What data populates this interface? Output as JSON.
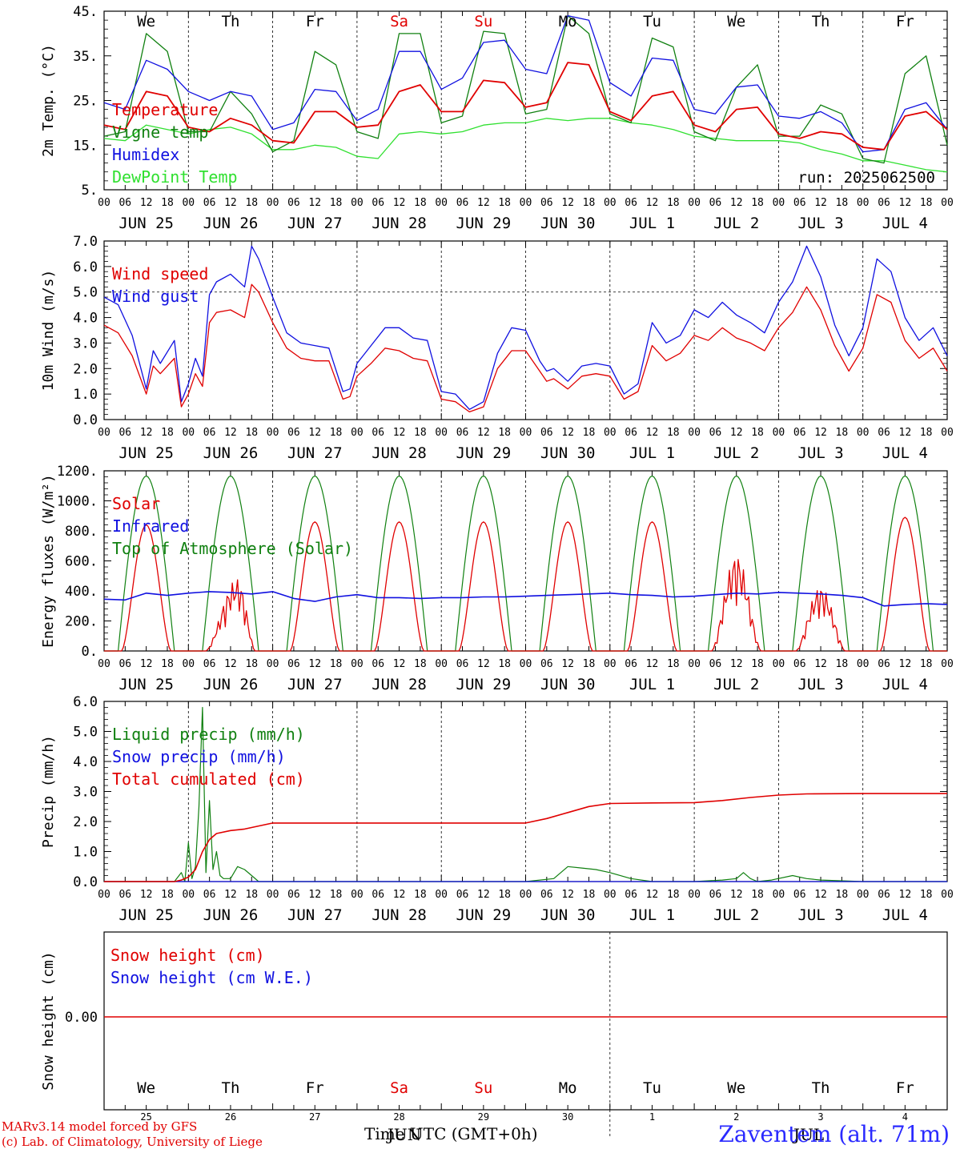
{
  "colors": {
    "red": "#e00000",
    "green": "#108010",
    "blue": "#1010e0",
    "lightgreen": "#30e030",
    "black": "#000000",
    "dayred": "#e00000"
  },
  "time_axis": {
    "hour_labels": [
      "00",
      "06",
      "12",
      "18"
    ],
    "date_labels": [
      "JUN 25",
      "JUN 26",
      "JUN 27",
      "JUN 28",
      "JUN 29",
      "JUN 30",
      "JUL  1",
      "JUL  2",
      "JUL  3",
      "JUL  4"
    ],
    "weekdays": [
      "We",
      "Th",
      "Fr",
      "Sa",
      "Su",
      "Mo",
      "Tu",
      "We",
      "Th",
      "Fr"
    ],
    "weekend_flags": [
      false,
      false,
      false,
      true,
      true,
      false,
      false,
      false,
      false,
      false
    ],
    "day_numbers": [
      "25",
      "26",
      "27",
      "28",
      "29",
      "30",
      "1",
      "2",
      "3",
      "4"
    ],
    "month_labels": [
      "JUN",
      "JUL"
    ]
  },
  "footer": {
    "model_line": "MARv3.14 model forced by GFS",
    "credit_line": "(c) Lab. of Climatology, University of Liege",
    "xlabel": "Time UTC (GMT+0h)",
    "station": "Zaventem (alt. 71m)"
  },
  "chart_data": [
    {
      "type": "line",
      "ylabel": "2m Temp. (°C)",
      "ylim": [
        5,
        45
      ],
      "yticks": [
        "5.",
        "15.",
        "25.",
        "35.",
        "45."
      ],
      "annotation": "run: 2025062500",
      "x_hours": [
        0,
        6,
        12,
        18,
        24,
        30,
        36,
        42,
        48,
        54,
        60,
        66,
        72,
        78,
        84,
        90,
        96,
        102,
        108,
        114,
        120,
        126,
        132,
        138,
        144,
        150,
        156,
        162,
        168,
        174,
        180,
        186,
        192,
        198,
        204,
        210,
        216,
        222,
        228,
        234,
        240
      ],
      "series": [
        {
          "name": "Temperature",
          "color": "red",
          "values": [
            19.5,
            18.5,
            27,
            26,
            19,
            18,
            21,
            19.5,
            16,
            15.5,
            22.5,
            22.5,
            19,
            19.5,
            27,
            28.5,
            22.5,
            22.5,
            29.5,
            29,
            23.5,
            24.5,
            33.5,
            33,
            22.5,
            20.5,
            26,
            27,
            19.5,
            18,
            23,
            23.5,
            17.5,
            16.5,
            18,
            17.5,
            14.5,
            14,
            21.5,
            22.5,
            18.5
          ]
        },
        {
          "name": "Vigne temp",
          "color": "green",
          "values": [
            17,
            18,
            40,
            36,
            18,
            18,
            27,
            22,
            13.5,
            16,
            36,
            33,
            18,
            16.5,
            40,
            40,
            20,
            21.5,
            40.5,
            40,
            22,
            23,
            44,
            40,
            22,
            20,
            39,
            37,
            18,
            16,
            28,
            33,
            17,
            17,
            24,
            22,
            12,
            11,
            31,
            35,
            15
          ]
        },
        {
          "name": "Humidex",
          "color": "blue",
          "values": [
            24.5,
            23,
            34,
            32,
            27,
            25,
            27,
            26,
            18.5,
            20,
            27.5,
            27,
            20.5,
            23,
            36,
            36,
            27.5,
            30,
            38,
            38.5,
            32,
            31,
            44,
            43,
            29,
            26,
            34.5,
            34,
            23,
            22,
            28,
            28.5,
            21.5,
            21,
            22.5,
            20,
            13.5,
            14,
            23,
            24.5,
            18.5
          ]
        },
        {
          "name": "DewPoint Temp",
          "color": "lightgreen",
          "values": [
            16.5,
            16,
            19.5,
            18.5,
            17.5,
            18.5,
            19,
            17.5,
            14,
            14,
            15,
            14.5,
            12.5,
            12,
            17.5,
            18,
            17.5,
            18,
            19.5,
            20,
            20,
            21,
            20.5,
            21,
            21,
            20,
            19.5,
            18.5,
            17,
            16.5,
            16,
            16,
            16,
            15.5,
            14,
            13,
            11.5,
            11.5,
            10.5,
            9.5,
            9
          ]
        }
      ]
    },
    {
      "type": "line",
      "ylabel": "10m Wind (m/s)",
      "ylim": [
        0,
        7
      ],
      "yticks": [
        "0.0",
        "1.0",
        "2.0",
        "3.0",
        "4.0",
        "5.0",
        "6.0",
        "7.0"
      ],
      "x_hours": [
        0,
        4,
        8,
        12,
        14,
        16,
        20,
        22,
        24,
        26,
        28,
        30,
        32,
        36,
        40,
        42,
        44,
        48,
        52,
        56,
        60,
        64,
        68,
        70,
        72,
        76,
        80,
        84,
        88,
        92,
        96,
        100,
        104,
        108,
        112,
        116,
        120,
        124,
        126,
        128,
        132,
        136,
        140,
        144,
        148,
        152,
        156,
        160,
        164,
        168,
        172,
        176,
        180,
        184,
        188,
        192,
        196,
        200,
        204,
        208,
        212,
        216,
        220,
        224,
        228,
        232,
        236,
        240
      ],
      "series": [
        {
          "name": "Wind speed",
          "color": "red",
          "values": [
            3.7,
            3.4,
            2.5,
            1.0,
            2.1,
            1.8,
            2.4,
            0.5,
            1.0,
            1.8,
            1.3,
            3.8,
            4.2,
            4.3,
            4.0,
            5.3,
            5.0,
            3.8,
            2.8,
            2.4,
            2.3,
            2.3,
            0.8,
            0.9,
            1.7,
            2.2,
            2.8,
            2.7,
            2.4,
            2.3,
            0.8,
            0.7,
            0.3,
            0.5,
            2.0,
            2.7,
            2.7,
            1.9,
            1.5,
            1.6,
            1.2,
            1.7,
            1.8,
            1.7,
            0.8,
            1.1,
            2.9,
            2.3,
            2.6,
            3.3,
            3.1,
            3.6,
            3.2,
            3.0,
            2.7,
            3.6,
            4.2,
            5.2,
            4.3,
            2.9,
            1.9,
            2.8,
            4.9,
            4.6,
            3.1,
            2.4,
            2.8,
            1.9
          ]
        },
        {
          "name": "Wind gust",
          "color": "blue",
          "values": [
            4.8,
            4.5,
            3.3,
            1.2,
            2.7,
            2.2,
            3.1,
            0.7,
            1.4,
            2.4,
            1.7,
            4.9,
            5.4,
            5.7,
            5.2,
            6.8,
            6.3,
            4.8,
            3.4,
            3.0,
            2.9,
            2.8,
            1.1,
            1.2,
            2.2,
            2.9,
            3.6,
            3.6,
            3.2,
            3.1,
            1.1,
            1.0,
            0.4,
            0.7,
            2.6,
            3.6,
            3.5,
            2.3,
            1.9,
            2.0,
            1.5,
            2.1,
            2.2,
            2.1,
            1.0,
            1.4,
            3.8,
            3.0,
            3.3,
            4.3,
            4.0,
            4.6,
            4.1,
            3.8,
            3.4,
            4.6,
            5.4,
            6.8,
            5.6,
            3.7,
            2.5,
            3.6,
            6.3,
            5.8,
            4.0,
            3.1,
            3.6,
            2.5
          ]
        }
      ],
      "reference_line": 5.0
    },
    {
      "type": "line",
      "ylabel": "Energy fluxes (W/m²)",
      "ylim": [
        0,
        1200
      ],
      "yticks": [
        "0.",
        "200.",
        "400.",
        "600.",
        "800.",
        "1000.",
        "1200."
      ],
      "series": [
        {
          "name": "Solar",
          "color": "red",
          "daily_peak": [
            840,
            480,
            860,
            860,
            860,
            860,
            860,
            640,
            430,
            890
          ],
          "daily_peak_hour": [
            12,
            14,
            12,
            12,
            12,
            12,
            12,
            12,
            12,
            12
          ]
        },
        {
          "name": "Infrared",
          "color": "blue",
          "x_hours": [
            0,
            6,
            12,
            18,
            24,
            30,
            36,
            42,
            48,
            54,
            60,
            66,
            72,
            78,
            84,
            90,
            96,
            102,
            108,
            114,
            120,
            126,
            132,
            138,
            144,
            150,
            156,
            162,
            168,
            174,
            180,
            186,
            192,
            198,
            204,
            210,
            216,
            222,
            228,
            234,
            240
          ],
          "values": [
            345,
            340,
            385,
            370,
            385,
            395,
            390,
            380,
            395,
            350,
            330,
            360,
            375,
            355,
            355,
            350,
            355,
            355,
            360,
            360,
            365,
            370,
            375,
            380,
            385,
            375,
            370,
            360,
            365,
            375,
            385,
            380,
            390,
            385,
            380,
            370,
            355,
            300,
            310,
            315,
            310
          ]
        },
        {
          "name": "Top of Atmosphere (Solar)",
          "color": "green",
          "daily_peak": [
            1165,
            1165,
            1165,
            1165,
            1165,
            1165,
            1165,
            1165,
            1165,
            1165
          ],
          "sunrise_hour": 4,
          "sunset_hour": 20
        }
      ]
    },
    {
      "type": "line",
      "ylabel": "Precip (mm/h)",
      "ylim": [
        0,
        6
      ],
      "yticks": [
        "0.0",
        "1.0",
        "2.0",
        "3.0",
        "4.0",
        "5.0",
        "6.0"
      ],
      "series": [
        {
          "name": "Liquid precip (mm/h)",
          "color": "green",
          "x_hours": [
            0,
            18,
            20,
            22,
            23,
            24,
            25,
            26,
            27,
            28,
            29,
            30,
            31,
            32,
            33,
            34,
            36,
            38,
            40,
            42,
            44,
            46,
            48,
            120,
            128,
            132,
            136,
            140,
            144,
            150,
            156,
            168,
            176,
            180,
            182,
            184,
            186,
            190,
            196,
            200,
            204,
            216,
            240
          ],
          "values": [
            0,
            0,
            0,
            0.3,
            0,
            1.3,
            0.1,
            0.5,
            2.5,
            5.8,
            0.3,
            2.7,
            0.4,
            1.0,
            0.2,
            0.1,
            0.1,
            0.5,
            0.4,
            0.2,
            0,
            0,
            0,
            0,
            0.1,
            0.5,
            0.45,
            0.4,
            0.3,
            0.1,
            0,
            0,
            0.05,
            0.1,
            0.3,
            0.1,
            0,
            0.05,
            0.2,
            0.1,
            0.05,
            0,
            0
          ]
        },
        {
          "name": "Snow precip (mm/h)",
          "color": "blue",
          "x_hours": [
            0,
            240
          ],
          "values": [
            0,
            0
          ]
        },
        {
          "name": "Total cumulated (cm)",
          "color": "red",
          "x_hours": [
            0,
            20,
            22,
            24,
            26,
            28,
            30,
            32,
            36,
            40,
            44,
            48,
            60,
            96,
            120,
            126,
            132,
            138,
            144,
            156,
            168,
            176,
            184,
            192,
            200,
            216,
            240
          ],
          "values": [
            0,
            0,
            0.05,
            0.15,
            0.4,
            1.0,
            1.4,
            1.6,
            1.7,
            1.75,
            1.85,
            1.95,
            1.95,
            1.95,
            1.95,
            2.1,
            2.3,
            2.5,
            2.6,
            2.62,
            2.63,
            2.7,
            2.8,
            2.88,
            2.92,
            2.93,
            2.93
          ]
        }
      ]
    },
    {
      "type": "line",
      "ylabel": "Snow height (cm)",
      "ytick": "0.00",
      "series": [
        {
          "name": "Snow height (cm)",
          "color": "red",
          "x_hours": [
            0,
            240
          ],
          "values": [
            0,
            0
          ]
        },
        {
          "name": "Snow height (cm W.E.)",
          "color": "blue"
        }
      ]
    }
  ]
}
